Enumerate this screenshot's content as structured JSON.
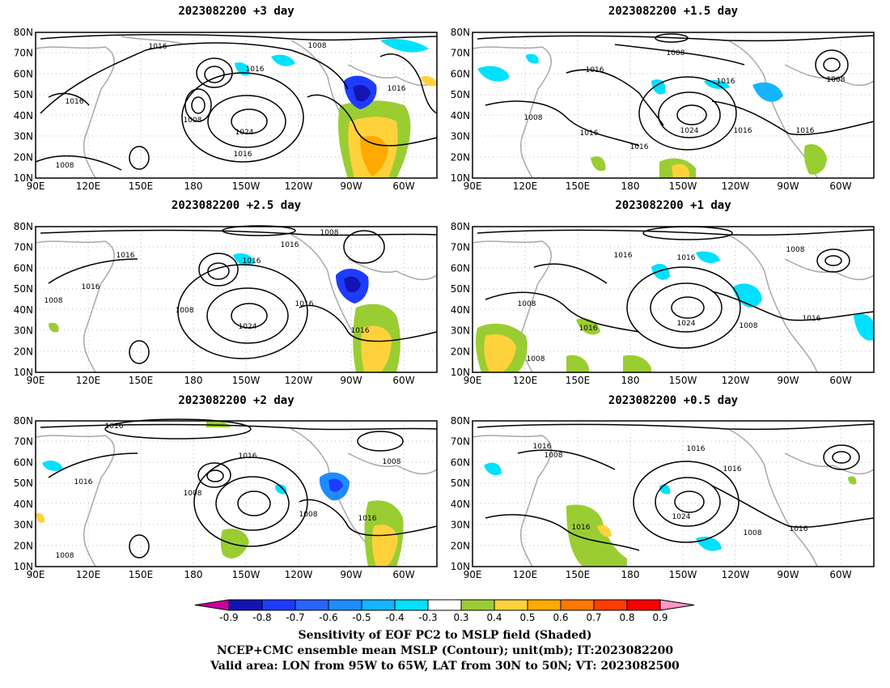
{
  "panels": [
    {
      "title": "2023082200 +3 day",
      "contour_labels": [
        "1016",
        "1008",
        "1016",
        "1016",
        "1016",
        "1008",
        "1024",
        "1016",
        "1008"
      ]
    },
    {
      "title": "2023082200 +1.5 day",
      "contour_labels": [
        "1016",
        "1016",
        "1008",
        "1016",
        "1016",
        "1008",
        "1024",
        "1016",
        "1016",
        "1008"
      ]
    },
    {
      "title": "2023082200 +2.5 day",
      "contour_labels": [
        "1008",
        "1016",
        "1016",
        "1016",
        "1016",
        "1008",
        "1008",
        "1024",
        "1016",
        "1016"
      ]
    },
    {
      "title": "2023082200 +1 day",
      "contour_labels": [
        "1016",
        "1016",
        "1008",
        "1008",
        "1016",
        "1024",
        "1008",
        "1016",
        "1008"
      ]
    },
    {
      "title": "2023082200 +2 day",
      "contour_labels": [
        "1016",
        "1016",
        "1016",
        "1008",
        "1008",
        "1016",
        "1008",
        "1008"
      ]
    },
    {
      "title": "2023082200 +0.5 day",
      "contour_labels": [
        "1016",
        "1008",
        "1016",
        "1016",
        "1024",
        "1016",
        "1008",
        "1016"
      ]
    }
  ],
  "axes": {
    "lat_labels": [
      "80N",
      "70N",
      "60N",
      "50N",
      "40N",
      "30N",
      "20N",
      "10N"
    ],
    "lon_labels": [
      "90E",
      "120E",
      "150E",
      "180",
      "150W",
      "120W",
      "90W",
      "60W"
    ]
  },
  "colorbar": {
    "labels": [
      "-0.9",
      "-0.8",
      "-0.7",
      "-0.6",
      "-0.5",
      "-0.4",
      "-0.3",
      "0.3",
      "0.4",
      "0.5",
      "0.6",
      "0.7",
      "0.8",
      "0.9"
    ],
    "colors": [
      "#1414b4",
      "#1e3cff",
      "#2864ff",
      "#1e8cff",
      "#14b4ff",
      "#00e0ff",
      "#ffffff",
      "#9acd32",
      "#ffd23c",
      "#ffaa00",
      "#ff7800",
      "#ff3c00",
      "#ff0000"
    ],
    "under_color": "#c800a0",
    "over_color": "#ff96c8"
  },
  "caption": {
    "line1": "Sensitivity of EOF PC2 to MSLP field (Shaded)",
    "line2": "NCEP+CMC ensemble mean MSLP (Contour); unit(mb); IT:2023082200",
    "line3": "Valid area: LON from 95W to 65W, LAT from 30N to 50N; VT: 2023082500"
  }
}
